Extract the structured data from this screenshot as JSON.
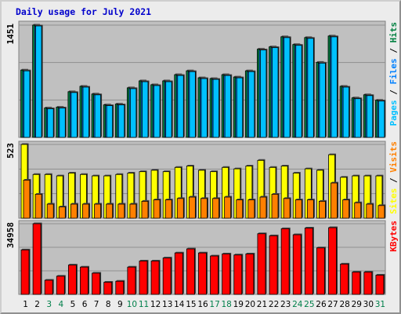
{
  "chart_data": {
    "type": "bar",
    "title": "Daily usage for July 2021",
    "colors": {
      "hits": "#008040",
      "files": "#0080ff",
      "pages": "#00c0ff",
      "visits": "#ff8000",
      "sites": "#ffff00",
      "kbytes": "#ff0000",
      "plot_bg": "#c0c0c0",
      "weekend_label": "#00804a"
    },
    "categories": [
      "1",
      "2",
      "3",
      "4",
      "5",
      "6",
      "7",
      "8",
      "9",
      "10",
      "11",
      "12",
      "13",
      "14",
      "15",
      "16",
      "17",
      "18",
      "19",
      "20",
      "21",
      "22",
      "23",
      "24",
      "25",
      "26",
      "27",
      "28",
      "29",
      "30",
      "31"
    ],
    "weekend_days": [
      3,
      4,
      10,
      11,
      17,
      18,
      24,
      25,
      31
    ],
    "panels": [
      {
        "id": "traffic",
        "max_label": "1451",
        "ymax": 1451,
        "right_label_parts": [
          {
            "text": "Pages",
            "series": "pages"
          },
          {
            "text": " / ",
            "series": "separator"
          },
          {
            "text": "Files",
            "series": "files"
          },
          {
            "text": " / ",
            "series": "separator"
          },
          {
            "text": "Hits",
            "series": "hits"
          }
        ],
        "series": [
          {
            "name": "Hits",
            "key": "hits",
            "values": [
              870,
              1451,
              380,
              390,
              590,
              660,
              560,
              420,
              430,
              640,
              730,
              680,
              730,
              810,
              860,
              770,
              760,
              810,
              780,
              860,
              1140,
              1170,
              1300,
              1200,
              1290,
              970,
              1310,
              660,
              510,
              550,
              480
            ]
          },
          {
            "name": "Files",
            "key": "files",
            "values": [
              860,
              1441,
              370,
              380,
              580,
              650,
              550,
              410,
              420,
              630,
              720,
              670,
              720,
              800,
              850,
              760,
              750,
              800,
              770,
              850,
              1130,
              1160,
              1290,
              1190,
              1280,
              960,
              1300,
              650,
              500,
              540,
              470
            ]
          },
          {
            "name": "Pages",
            "key": "pages",
            "values": [
              860,
              1441,
              370,
              380,
              580,
              650,
              550,
              410,
              420,
              630,
              720,
              670,
              720,
              800,
              850,
              760,
              750,
              800,
              770,
              850,
              1130,
              1160,
              1290,
              1190,
              1280,
              960,
              1300,
              650,
              500,
              540,
              470
            ]
          }
        ]
      },
      {
        "id": "visitors",
        "max_label": "523",
        "ymax": 523,
        "right_label_parts": [
          {
            "text": "Sites",
            "series": "sites"
          },
          {
            "text": " / ",
            "series": "separator"
          },
          {
            "text": "Visits",
            "series": "visits"
          }
        ],
        "series": [
          {
            "name": "Visits",
            "key": "visits",
            "values": [
              270,
              170,
              100,
              80,
              100,
              100,
              100,
              100,
              100,
              100,
              120,
              130,
              130,
              140,
              150,
              140,
              140,
              150,
              130,
              130,
              150,
              170,
              140,
              130,
              130,
              120,
              250,
              130,
              110,
              100,
              90
            ]
          },
          {
            "name": "Sites",
            "key": "sites",
            "values": [
              523,
              310,
              310,
              300,
              320,
              310,
              300,
              300,
              310,
              320,
              330,
              340,
              330,
              360,
              370,
              340,
              330,
              360,
              350,
              370,
              410,
              360,
              370,
              320,
              350,
              340,
              450,
              290,
              300,
              300,
              300
            ]
          }
        ]
      },
      {
        "id": "volume",
        "max_label": "34958",
        "ymax": 34958,
        "right_label_parts": [
          {
            "text": "KBytes",
            "series": "kbytes"
          }
        ],
        "series": [
          {
            "name": "KBytes",
            "key": "kbytes",
            "values": [
              22000,
              34958,
              7000,
              9000,
              14500,
              13500,
              10500,
              6000,
              6500,
              13500,
              16500,
              16500,
              18000,
              20500,
              22500,
              20500,
              19000,
              20000,
              19500,
              20000,
              30000,
              29000,
              32500,
              29500,
              32800,
              23000,
              33000,
              15000,
              11000,
              11000,
              9500
            ]
          }
        ]
      }
    ]
  }
}
